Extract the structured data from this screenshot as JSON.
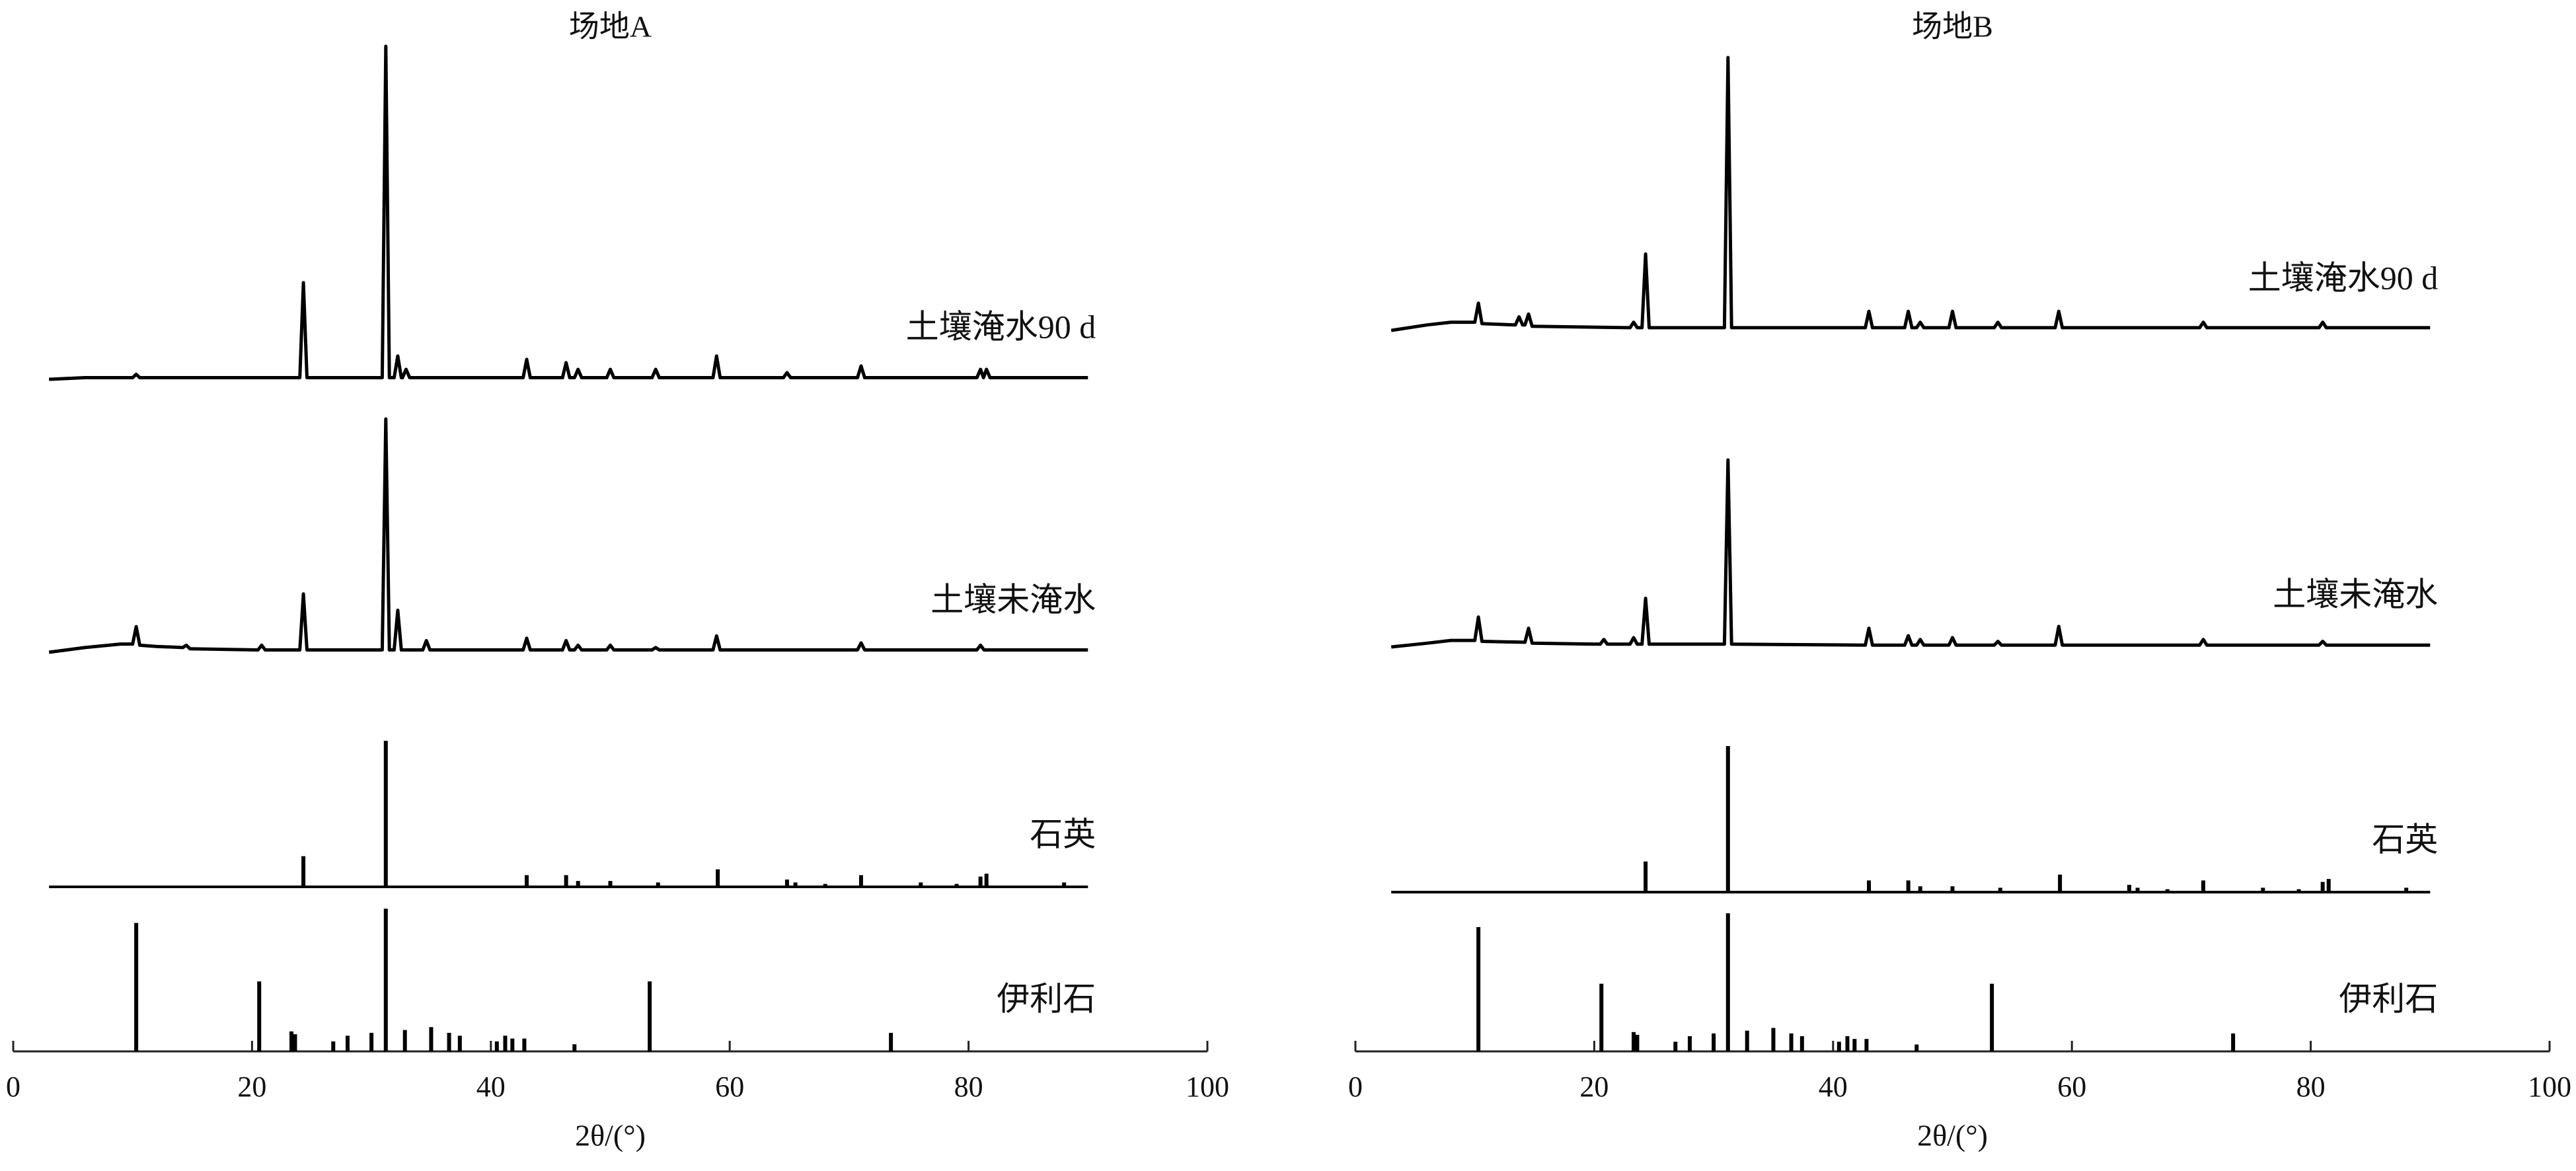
{
  "chart_data": [
    {
      "type": "xrd",
      "title": "场地A",
      "xlabel": "2θ/(°)",
      "xlim": [
        0,
        100
      ],
      "xticks": [
        0,
        20,
        40,
        60,
        80,
        100
      ],
      "series": [
        {
          "name": "土壤淹水90 d",
          "kind": "line",
          "color": "#000000",
          "x": [
            3,
            6,
            10,
            10.3,
            10.6,
            24,
            24.3,
            24.6,
            30.9,
            31.2,
            31.5,
            31.9,
            32.2,
            32.5,
            32.6,
            32.9,
            33.2,
            42.7,
            43,
            43.3,
            46,
            46.3,
            46.6,
            47,
            47.3,
            47.6,
            49.7,
            50,
            50.3,
            53.5,
            53.8,
            54.1,
            58.6,
            58.9,
            59.2,
            64.5,
            64.8,
            65.1,
            70.7,
            71,
            71.3,
            80.7,
            81,
            81.25,
            81.5,
            81.8,
            90
          ],
          "values": [
            0,
            0.5,
            0.5,
            1.5,
            0.5,
            0.5,
            29,
            0.5,
            0.5,
            100,
            0.5,
            0.5,
            7,
            0.5,
            0.5,
            3,
            0.5,
            0.5,
            6,
            0.5,
            0.5,
            5,
            0.5,
            0.5,
            3,
            0.5,
            0.5,
            3,
            0.5,
            0.5,
            3,
            0.5,
            0.5,
            7,
            0.5,
            0.5,
            2,
            0.5,
            0.5,
            4,
            0.5,
            0.5,
            3,
            0.5,
            3,
            0.5,
            0.5
          ]
        },
        {
          "name": "土壤未淹水",
          "kind": "line",
          "color": "#000000",
          "x": [
            3,
            6,
            9,
            10,
            10.3,
            10.6,
            12,
            14.2,
            14.5,
            14.8,
            20.5,
            20.8,
            21.1,
            24,
            24.3,
            24.6,
            30.9,
            31.2,
            31.5,
            31.9,
            32.2,
            32.5,
            34.3,
            34.6,
            34.9,
            42.7,
            43,
            43.3,
            46,
            46.3,
            46.6,
            47,
            47.3,
            47.6,
            49.7,
            50,
            50.3,
            53.5,
            53.8,
            54.1,
            58.6,
            58.9,
            59.2,
            70.7,
            71,
            71.3,
            80.7,
            81,
            81.3,
            90
          ],
          "values": [
            0,
            2,
            3.5,
            3.5,
            11,
            3,
            2.5,
            2,
            3,
            1.5,
            1,
            3,
            1,
            1,
            25,
            1,
            1,
            100,
            1,
            1,
            18,
            1,
            1,
            5,
            1,
            1,
            6,
            1,
            1,
            5,
            1,
            1,
            3,
            1,
            1,
            3,
            1,
            1,
            2,
            1,
            1,
            7,
            1,
            1,
            4,
            1,
            1,
            3,
            1,
            1
          ]
        },
        {
          "name": "石英",
          "kind": "stick",
          "color": "#000000",
          "x": [
            24.3,
            31.2,
            43,
            46.3,
            47.3,
            50,
            54,
            59,
            64.8,
            65.5,
            68,
            71,
            76,
            79,
            81,
            81.5,
            88
          ],
          "values": [
            21,
            100,
            8,
            8,
            4,
            4,
            3,
            12,
            5,
            3,
            2,
            8,
            3,
            2,
            7,
            9,
            3
          ]
        },
        {
          "name": "伊利石",
          "kind": "stick",
          "color": "#000000",
          "x": [
            10.3,
            20.6,
            23.3,
            23.6,
            26.8,
            28,
            30,
            31.2,
            32.8,
            35,
            36.5,
            37.4,
            40.5,
            41.2,
            41.8,
            42.8,
            47,
            53.3,
            73.5
          ],
          "values": [
            90,
            49,
            14,
            12,
            7,
            11,
            13,
            100,
            15,
            17,
            13,
            11,
            7,
            11,
            9,
            9,
            5,
            49,
            13
          ]
        }
      ]
    },
    {
      "type": "xrd",
      "title": "场地B",
      "xlabel": "2θ/(°)",
      "xlim": [
        0,
        100
      ],
      "xticks": [
        0,
        20,
        40,
        60,
        80,
        100
      ],
      "series": [
        {
          "name": "土壤淹水90 d",
          "kind": "line",
          "color": "#000000",
          "x": [
            3,
            6,
            8,
            10,
            10.3,
            10.6,
            13.4,
            13.7,
            14,
            14.2,
            14.5,
            14.8,
            23,
            23.3,
            23.6,
            24,
            24.3,
            24.6,
            30.9,
            31.2,
            31.5,
            42.7,
            43,
            43.3,
            46,
            46.3,
            46.6,
            47,
            47.3,
            47.6,
            49.7,
            50,
            50.3,
            53.5,
            53.8,
            54.1,
            58.6,
            58.9,
            59.2,
            70.7,
            71,
            71.3,
            80.7,
            81,
            81.3,
            90
          ],
          "values": [
            0,
            2,
            3,
            3,
            10,
            2.5,
            2,
            5,
            2,
            2,
            6,
            1.5,
            1,
            3,
            1,
            1,
            28,
            1,
            1,
            100,
            1,
            1,
            7,
            1,
            1,
            7,
            1,
            1,
            3,
            1,
            1,
            7,
            1,
            1,
            3,
            1,
            1,
            7,
            1,
            1,
            3,
            1,
            1,
            3,
            1,
            1
          ]
        },
        {
          "name": "土壤未淹水",
          "kind": "line",
          "color": "#000000",
          "x": [
            3,
            6,
            8,
            10,
            10.3,
            10.6,
            14.2,
            14.5,
            14.8,
            20.5,
            20.8,
            21.1,
            23,
            23.3,
            23.6,
            24,
            24.3,
            24.6,
            30.9,
            31.2,
            31.5,
            42.7,
            43,
            43.3,
            46,
            46.3,
            46.6,
            47,
            47.3,
            47.6,
            49.7,
            50,
            50.3,
            53.5,
            53.8,
            54.1,
            58.6,
            58.9,
            59.2,
            70.7,
            71,
            71.3,
            80.7,
            81,
            81.3,
            90
          ],
          "values": [
            0,
            2,
            3.5,
            3.5,
            16,
            3,
            2.5,
            10,
            2,
            1.5,
            4,
            1.5,
            1.5,
            5,
            1.5,
            1.5,
            26,
            1.5,
            1.5,
            100,
            1.5,
            1,
            10,
            1,
            1,
            6,
            1,
            1,
            4,
            1,
            1,
            5,
            1,
            1,
            3,
            1,
            1,
            11,
            1,
            1,
            4,
            1,
            1,
            3,
            1,
            1
          ]
        },
        {
          "name": "石英",
          "kind": "stick",
          "color": "#000000",
          "x": [
            24.3,
            31.2,
            43,
            46.3,
            47.3,
            50,
            54,
            59,
            64.8,
            65.5,
            68,
            71,
            76,
            79,
            81,
            81.5,
            88
          ],
          "values": [
            21,
            100,
            8,
            8,
            4,
            4,
            3,
            12,
            5,
            3,
            2,
            8,
            3,
            2,
            7,
            9,
            3
          ]
        },
        {
          "name": "伊利石",
          "kind": "stick",
          "color": "#000000",
          "x": [
            10.3,
            20.6,
            23.3,
            23.6,
            26.8,
            28,
            30,
            31.2,
            32.8,
            35,
            36.5,
            37.4,
            40.5,
            41.2,
            41.8,
            42.8,
            47,
            53.3,
            73.5
          ],
          "values": [
            90,
            49,
            14,
            12,
            7,
            11,
            13,
            100,
            15,
            17,
            13,
            11,
            7,
            11,
            9,
            9,
            5,
            49,
            13
          ]
        }
      ]
    }
  ]
}
